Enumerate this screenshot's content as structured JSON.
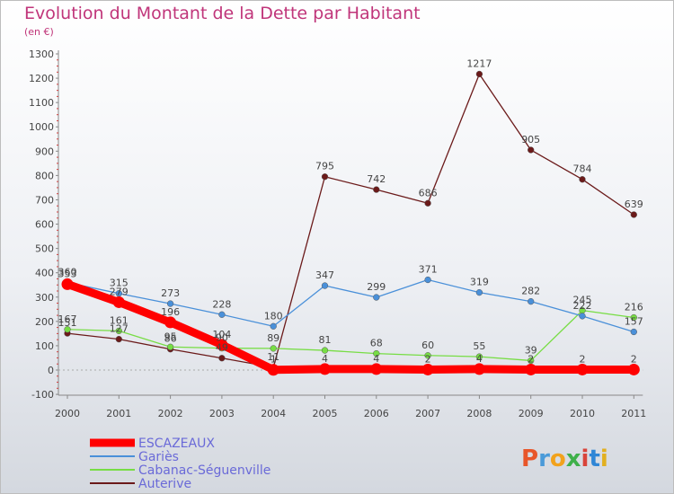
{
  "chart_data": {
    "type": "line",
    "title": "Evolution du Montant de la Dette par Habitant",
    "unit": "(en €)",
    "x": [
      "2000",
      "2001",
      "2002",
      "2003",
      "2004",
      "2005",
      "2006",
      "2007",
      "2008",
      "2009",
      "2010",
      "2011"
    ],
    "ylim": [
      -100,
      1300
    ],
    "yticks": [
      -100,
      0,
      100,
      200,
      300,
      400,
      500,
      600,
      700,
      800,
      900,
      1000,
      1100,
      1200,
      1300
    ],
    "grid": false,
    "legend_position": "bottom-left",
    "series": [
      {
        "name": "ESCAZEAUX",
        "color": "#ff0000",
        "values": [
          353,
          279,
          196,
          104,
          1,
          4,
          4,
          2,
          4,
          2,
          2,
          2
        ]
      },
      {
        "name": "Gariès",
        "color": "#4a90d9",
        "values": [
          360,
          315,
          273,
          228,
          180,
          347,
          299,
          371,
          319,
          282,
          222,
          157
        ]
      },
      {
        "name": "Cabanac-Séguenville",
        "color": "#77dd44",
        "values": [
          167,
          161,
          95,
          90,
          89,
          81,
          68,
          60,
          55,
          39,
          245,
          216
        ]
      },
      {
        "name": "Auterive",
        "color": "#6b1a1a",
        "values": [
          151,
          127,
          86,
          49,
          11,
          795,
          742,
          686,
          1217,
          905,
          784,
          639
        ]
      }
    ],
    "logo": "Proxiti"
  }
}
